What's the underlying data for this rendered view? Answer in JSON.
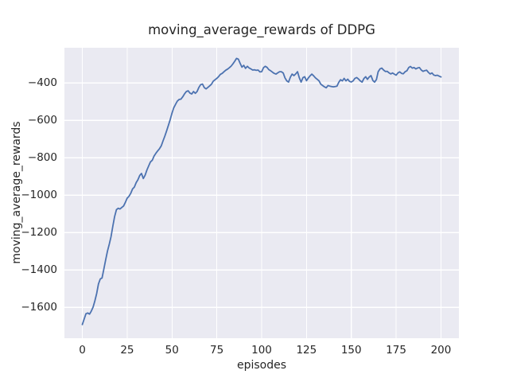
{
  "figure": {
    "background": "#ffffff"
  },
  "chart_data": {
    "type": "line",
    "title": "moving_average_rewards of DDPG",
    "xlabel": "episodes",
    "ylabel": "moving_average_rewards",
    "grid": true,
    "legend": "none",
    "plot_bg": "#EAEAF2",
    "grid_color": "#FFFFFF",
    "line_color": "#4C72B0",
    "text_color": "#262626",
    "xlim": [
      -10,
      210
    ],
    "ylim": [
      -1765,
      -212
    ],
    "x_ticks": [
      {
        "value": 0,
        "label": "0"
      },
      {
        "value": 25,
        "label": "25"
      },
      {
        "value": 50,
        "label": "50"
      },
      {
        "value": 75,
        "label": "75"
      },
      {
        "value": 100,
        "label": "100"
      },
      {
        "value": 125,
        "label": "125"
      },
      {
        "value": 150,
        "label": "150"
      },
      {
        "value": 175,
        "label": "175"
      },
      {
        "value": 200,
        "label": "200"
      }
    ],
    "y_ticks": [
      {
        "value": -400,
        "label": "−400"
      },
      {
        "value": -600,
        "label": "−600"
      },
      {
        "value": -800,
        "label": "−800"
      },
      {
        "value": -1000,
        "label": "−1000"
      },
      {
        "value": -1200,
        "label": "−1200"
      },
      {
        "value": -1400,
        "label": "−1400"
      },
      {
        "value": -1600,
        "label": "−1600"
      }
    ],
    "series": [
      {
        "name": "moving_average_rewards",
        "x_start": 0,
        "x_step": 1,
        "values": [
          -1692,
          -1663,
          -1634,
          -1630,
          -1636,
          -1620,
          -1598,
          -1565,
          -1525,
          -1475,
          -1448,
          -1443,
          -1395,
          -1345,
          -1300,
          -1262,
          -1222,
          -1165,
          -1115,
          -1078,
          -1070,
          -1074,
          -1066,
          -1058,
          -1038,
          -1016,
          -1006,
          -990,
          -967,
          -957,
          -933,
          -918,
          -895,
          -884,
          -911,
          -893,
          -866,
          -843,
          -822,
          -813,
          -791,
          -776,
          -764,
          -752,
          -737,
          -710,
          -684,
          -656,
          -626,
          -596,
          -561,
          -533,
          -514,
          -497,
          -488,
          -487,
          -474,
          -458,
          -446,
          -442,
          -454,
          -459,
          -446,
          -456,
          -446,
          -424,
          -409,
          -406,
          -425,
          -432,
          -424,
          -416,
          -407,
          -391,
          -383,
          -376,
          -366,
          -354,
          -349,
          -340,
          -332,
          -326,
          -319,
          -310,
          -298,
          -284,
          -269,
          -273,
          -295,
          -316,
          -306,
          -322,
          -311,
          -320,
          -325,
          -331,
          -330,
          -333,
          -331,
          -341,
          -340,
          -319,
          -311,
          -317,
          -329,
          -335,
          -342,
          -349,
          -353,
          -346,
          -340,
          -340,
          -347,
          -373,
          -389,
          -396,
          -369,
          -353,
          -361,
          -352,
          -340,
          -372,
          -396,
          -372,
          -367,
          -388,
          -374,
          -362,
          -353,
          -362,
          -373,
          -381,
          -389,
          -407,
          -414,
          -421,
          -426,
          -414,
          -417,
          -419,
          -421,
          -419,
          -417,
          -397,
          -383,
          -389,
          -376,
          -389,
          -380,
          -392,
          -395,
          -389,
          -376,
          -371,
          -379,
          -389,
          -396,
          -377,
          -367,
          -381,
          -368,
          -361,
          -387,
          -396,
          -382,
          -340,
          -325,
          -321,
          -331,
          -339,
          -338,
          -346,
          -352,
          -347,
          -353,
          -359,
          -347,
          -341,
          -349,
          -351,
          -340,
          -335,
          -318,
          -312,
          -321,
          -318,
          -325,
          -320,
          -318,
          -331,
          -338,
          -334,
          -332,
          -344,
          -352,
          -347,
          -358,
          -361,
          -359,
          -364,
          -368
        ]
      }
    ]
  }
}
